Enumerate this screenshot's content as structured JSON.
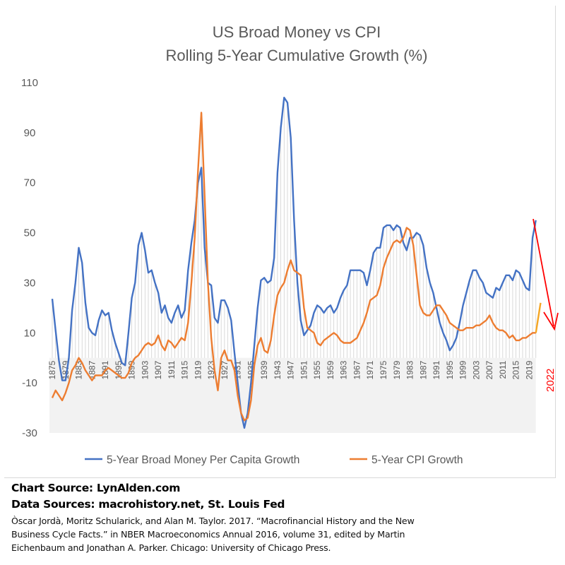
{
  "chart_data": {
    "type": "line",
    "title": "US Broad Money vs CPI",
    "subtitle": "Rolling 5-Year Cumulative Growth (%)",
    "xlabel": "",
    "ylabel": "",
    "ylim": [
      -30,
      110
    ],
    "yticks": [
      110,
      90,
      70,
      50,
      30,
      10,
      -10,
      -30
    ],
    "x_start": 1875,
    "x_end": 2021,
    "xtick_step": 4,
    "xticks": [
      "1875",
      "1879",
      "1883",
      "1887",
      "1891",
      "1895",
      "1899",
      "1903",
      "1907",
      "1911",
      "1915",
      "1919",
      "1923",
      "1927",
      "1931",
      "1935",
      "1939",
      "1943",
      "1947",
      "1951",
      "1955",
      "1959",
      "1963",
      "1967",
      "1971",
      "1975",
      "1979",
      "1983",
      "1987",
      "1991",
      "1995",
      "1999",
      "2003",
      "2007",
      "2011",
      "2015",
      "2019"
    ],
    "legend_position": "bottom",
    "series": [
      {
        "name": "5-Year Broad Money Per Capita Growth",
        "color": "#4472c4",
        "values": [
          23.6,
          11,
          -1,
          -9,
          -9,
          0,
          19,
          30,
          44,
          38,
          22,
          12,
          10,
          9,
          15,
          19,
          17,
          18,
          11,
          6,
          2,
          -2,
          -3,
          10,
          24,
          30,
          45,
          50,
          43,
          34,
          35,
          30,
          26,
          18,
          21,
          16,
          14,
          18,
          21,
          16,
          19,
          35,
          46,
          55,
          70,
          76,
          44,
          30,
          29,
          16,
          14,
          23,
          23,
          20,
          15,
          2,
          -10,
          -22,
          -28,
          -22,
          -10,
          5,
          20,
          31,
          32,
          30,
          31,
          40,
          74,
          92,
          104,
          102,
          88,
          55,
          30,
          15,
          9,
          11,
          13,
          18,
          21,
          20,
          18,
          20,
          21,
          18,
          20,
          24,
          27,
          29,
          35,
          35,
          35,
          35,
          34,
          29,
          35,
          42,
          44,
          44,
          52,
          53,
          53,
          51,
          53,
          52,
          46,
          43,
          48,
          48,
          50,
          49,
          45,
          36,
          30,
          26,
          20,
          14,
          10,
          7,
          3,
          5,
          8,
          14,
          21,
          26,
          31,
          35,
          35,
          32,
          30,
          26,
          25,
          24,
          28,
          27,
          30,
          33,
          33,
          31,
          35,
          34,
          31,
          28,
          27,
          48,
          55
        ]
      },
      {
        "name": "5-Year CPI Growth",
        "color": "#ed7d31",
        "values": [
          -16,
          -13,
          -15,
          -17,
          -14,
          -10,
          -5,
          -3,
          0,
          -2,
          -5,
          -7,
          -9,
          -7,
          -7,
          -7,
          -5,
          -4,
          -5,
          -6,
          -7,
          -8,
          -8,
          -6,
          -2,
          0,
          1,
          3,
          5,
          6,
          5,
          6,
          9,
          5,
          3,
          7,
          6,
          4,
          6,
          8,
          7,
          14,
          30,
          48,
          75,
          98,
          65,
          30,
          8,
          -5,
          -13,
          0,
          3,
          -1,
          -1,
          -5,
          -15,
          -22,
          -25,
          -24,
          -17,
          -3,
          5,
          8,
          3,
          2,
          7,
          17,
          25,
          28,
          30,
          35,
          39,
          35,
          34,
          33,
          20,
          12,
          11,
          10,
          6,
          5,
          7,
          8,
          9,
          10,
          9,
          7,
          6,
          6,
          6,
          7,
          8,
          11,
          14,
          18,
          23,
          24,
          25,
          29,
          36,
          40,
          43,
          46,
          47,
          46,
          48,
          52,
          51,
          45,
          33,
          21,
          18,
          17,
          17,
          19,
          21,
          21,
          19,
          17,
          14,
          13,
          12,
          11,
          11,
          12,
          12,
          12,
          13,
          13,
          14,
          15,
          17,
          14,
          12,
          11,
          11,
          10,
          8,
          9,
          7,
          7,
          8,
          8,
          9,
          10,
          10
        ]
      }
    ],
    "annotations": [
      {
        "text": "2022",
        "color": "#ff0000",
        "note": "red arrow pointing down"
      },
      {
        "type": "projection",
        "year": 2022,
        "value": 22,
        "color": "#f5a623"
      }
    ]
  },
  "sources": {
    "chart_source": "Chart Source: LynAlden.com",
    "data_sources": "Data Sources: macrohistory.net, St. Louis Fed",
    "citation": "Òscar Jordà, Moritz Schularick, and Alan M. Taylor. 2017. “Macrofinancial History and the New Business Cycle Facts.” in NBER Macroeconomics Annual 2016, volume 31, edited by Martin Eichenbaum and Jonathan A. Parker. Chicago: University of Chicago Press."
  }
}
